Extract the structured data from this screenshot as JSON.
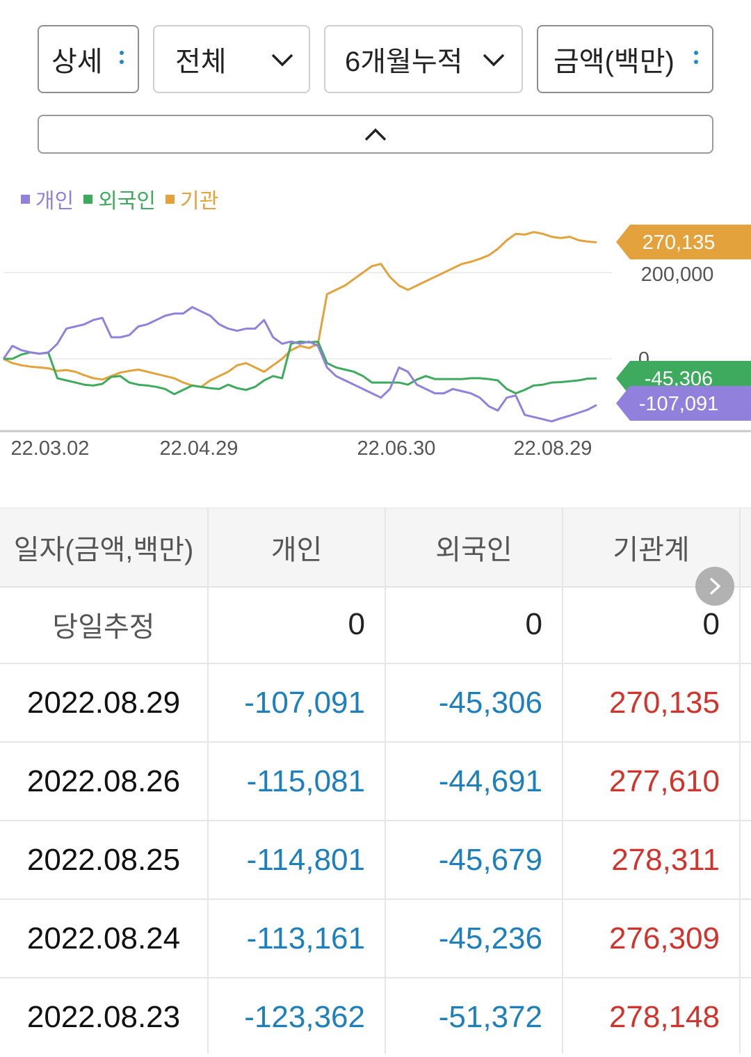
{
  "filters": [
    {
      "label": "상세",
      "icon": "kebab-icon"
    },
    {
      "label": "전체",
      "icon": "chevron-down-icon"
    },
    {
      "label": "6개월누적",
      "icon": "chevron-down-icon"
    },
    {
      "label": "금액(백만)",
      "icon": "kebab-icon"
    }
  ],
  "collapse_icon": "chevron-up-icon",
  "legend": [
    {
      "label": "개인",
      "color": "#9281dc"
    },
    {
      "label": "외국인",
      "color": "#3eaa5d"
    },
    {
      "label": "기관",
      "color": "#e3a23b"
    }
  ],
  "chart_data": {
    "type": "line",
    "x_tick_labels": [
      "22.03.02",
      "22.04.29",
      "22.06.30",
      "22.08.29"
    ],
    "y_tick_labels": [
      "200,000",
      "0"
    ],
    "ylim": [
      -170000,
      325000
    ],
    "grid": true,
    "series": [
      {
        "name": "기관",
        "color": "#e3a23b",
        "last_label": "270,135",
        "values": [
          0,
          -10000,
          -15000,
          -18000,
          -20000,
          -22000,
          -28000,
          -26000,
          -30000,
          -38000,
          -45000,
          -48000,
          -40000,
          -32000,
          -28000,
          -25000,
          -30000,
          -35000,
          -40000,
          -45000,
          -55000,
          -62000,
          -65000,
          -50000,
          -40000,
          -30000,
          -15000,
          -10000,
          -20000,
          -30000,
          -15000,
          0,
          20000,
          30000,
          25000,
          35000,
          150000,
          160000,
          170000,
          185000,
          200000,
          215000,
          220000,
          190000,
          170000,
          160000,
          170000,
          180000,
          190000,
          200000,
          210000,
          220000,
          225000,
          232000,
          240000,
          255000,
          275000,
          290000,
          288000,
          294000,
          290000,
          283000,
          280000,
          283000,
          275000,
          272000,
          270135
        ]
      },
      {
        "name": "외국인",
        "color": "#3eaa5d",
        "last_label": "-45,306",
        "values": [
          0,
          0,
          10000,
          15000,
          12000,
          14000,
          -45000,
          -50000,
          -55000,
          -60000,
          -62000,
          -58000,
          -42000,
          -40000,
          -55000,
          -60000,
          -62000,
          -65000,
          -70000,
          -82000,
          -72000,
          -62000,
          -65000,
          -68000,
          -70000,
          -60000,
          -68000,
          -72000,
          -65000,
          -50000,
          -40000,
          -45000,
          35000,
          40000,
          38000,
          40000,
          -10000,
          -20000,
          -25000,
          -30000,
          -40000,
          -55000,
          -55000,
          -55000,
          -55000,
          -60000,
          -48000,
          -40000,
          -47000,
          -47000,
          -47000,
          -47000,
          -45000,
          -45000,
          -47000,
          -50000,
          -70000,
          -80000,
          -72000,
          -62000,
          -60000,
          -55000,
          -54000,
          -52000,
          -50000,
          -46000,
          -45306
        ]
      },
      {
        "name": "개인",
        "color": "#9281dc",
        "last_label": "-107,091",
        "values": [
          0,
          30000,
          20000,
          15000,
          12000,
          15000,
          35000,
          70000,
          75000,
          80000,
          90000,
          95000,
          50000,
          50000,
          55000,
          75000,
          80000,
          90000,
          100000,
          105000,
          105000,
          120000,
          110000,
          100000,
          80000,
          70000,
          65000,
          70000,
          70000,
          90000,
          50000,
          35000,
          40000,
          35000,
          40000,
          30000,
          -20000,
          -40000,
          -50000,
          -60000,
          -70000,
          -80000,
          -90000,
          -70000,
          -20000,
          -30000,
          -60000,
          -70000,
          -80000,
          -80000,
          -70000,
          -75000,
          -80000,
          -90000,
          -110000,
          -120000,
          -90000,
          -85000,
          -130000,
          -135000,
          -140000,
          -145000,
          -138000,
          -132000,
          -125000,
          -118000,
          -107091
        ]
      }
    ]
  },
  "table": {
    "headers": [
      "일자(금액,백만)",
      "개인",
      "외국인",
      "기관계"
    ],
    "rows": [
      {
        "date": "당일추정",
        "individual": "0",
        "foreign": "0",
        "institution": "0"
      },
      {
        "date": "2022.08.29",
        "individual": "-107,091",
        "foreign": "-45,306",
        "institution": "270,135"
      },
      {
        "date": "2022.08.26",
        "individual": "-115,081",
        "foreign": "-44,691",
        "institution": "277,610"
      },
      {
        "date": "2022.08.25",
        "individual": "-114,801",
        "foreign": "-45,679",
        "institution": "278,311"
      },
      {
        "date": "2022.08.24",
        "individual": "-113,161",
        "foreign": "-45,236",
        "institution": "276,309"
      },
      {
        "date": "2022.08.23",
        "individual": "-123,362",
        "foreign": "-51,372",
        "institution": "278,148"
      }
    ],
    "next_icon": "chevron-right-icon"
  }
}
